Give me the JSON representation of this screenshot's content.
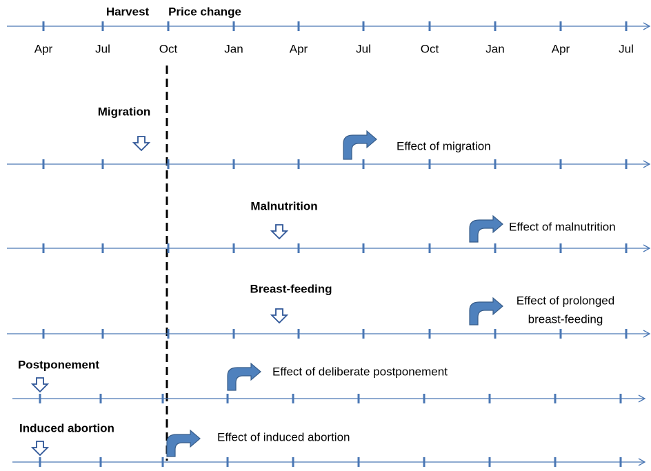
{
  "header": {
    "harvest": "Harvest",
    "price_change": "Price change"
  },
  "months": [
    "Apr",
    "Jul",
    "Oct",
    "Jan",
    "Apr",
    "Jul",
    "Oct",
    "Jan",
    "Apr",
    "Jul"
  ],
  "rows": [
    {
      "cause": "Migration",
      "effect": [
        "Effect of migration"
      ]
    },
    {
      "cause": "Malnutrition",
      "effect": [
        "Effect of malnutrition"
      ]
    },
    {
      "cause": "Breast-feeding",
      "effect": [
        "Effect of prolonged",
        "breast-feeding"
      ]
    },
    {
      "cause": "Postponement",
      "effect": [
        "Effect of deliberate postponement"
      ]
    },
    {
      "cause": "Induced abortion",
      "effect": [
        "Effect of induced abortion"
      ]
    }
  ]
}
